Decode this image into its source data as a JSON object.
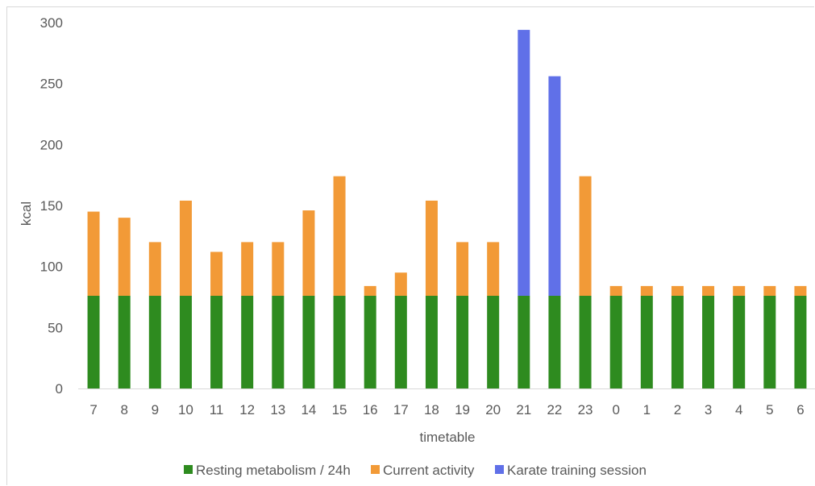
{
  "chart_data": {
    "type": "bar",
    "stacked": true,
    "title": "",
    "xlabel": "timetable",
    "ylabel": "kcal",
    "ylim": [
      0,
      300
    ],
    "yticks": [
      0,
      50,
      100,
      150,
      200,
      250,
      300
    ],
    "grid": false,
    "legend_position": "bottom",
    "categories": [
      "7",
      "8",
      "9",
      "10",
      "11",
      "12",
      "13",
      "14",
      "15",
      "16",
      "17",
      "18",
      "19",
      "20",
      "21",
      "22",
      "23",
      "0",
      "1",
      "2",
      "3",
      "4",
      "5",
      "6"
    ],
    "series": [
      {
        "name": "Resting metabolism / 24h",
        "color": "#2e8b1f",
        "values": [
          76,
          76,
          76,
          76,
          76,
          76,
          76,
          76,
          76,
          76,
          76,
          76,
          76,
          76,
          76,
          76,
          76,
          76,
          76,
          76,
          76,
          76,
          76,
          76
        ]
      },
      {
        "name": "Current activity",
        "color": "#f29a37",
        "values": [
          69,
          64,
          44,
          78,
          36,
          44,
          44,
          70,
          98,
          8,
          19,
          78,
          44,
          44,
          0,
          0,
          98,
          8,
          8,
          8,
          8,
          8,
          8,
          8
        ]
      },
      {
        "name": "Karate training session",
        "color": "#6070e8",
        "values": [
          0,
          0,
          0,
          0,
          0,
          0,
          0,
          0,
          0,
          0,
          0,
          0,
          0,
          0,
          218,
          180,
          0,
          0,
          0,
          0,
          0,
          0,
          0,
          0
        ]
      }
    ]
  }
}
